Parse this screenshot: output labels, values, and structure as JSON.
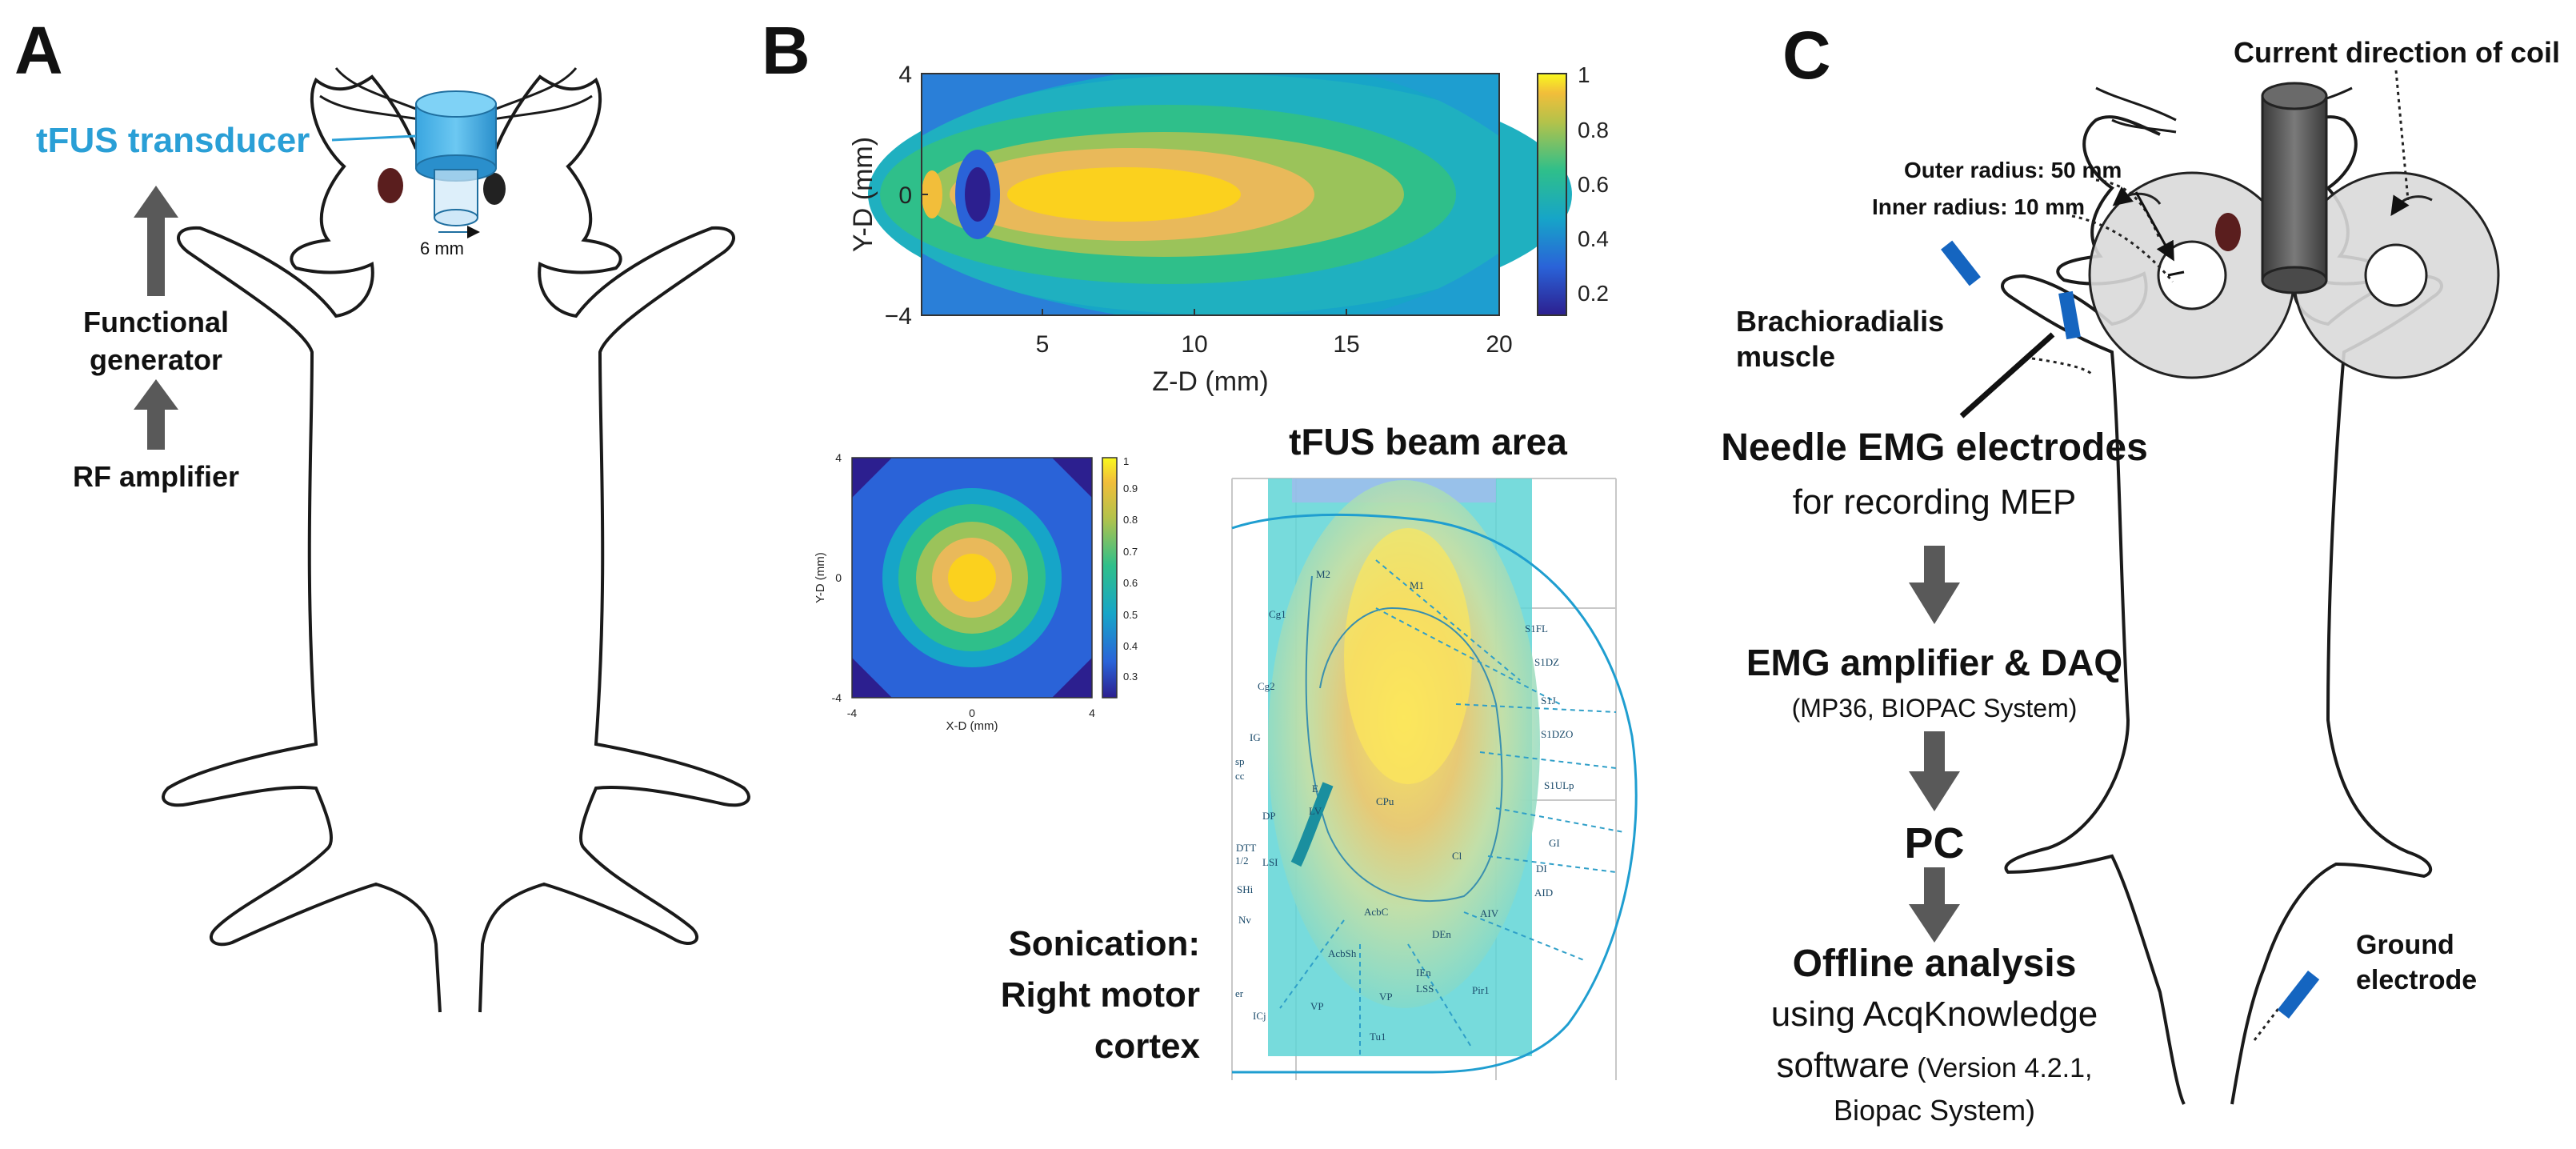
{
  "panels": {
    "a": {
      "letter": "A",
      "transducer_label": "tFUS transducer",
      "size_label": "6 mm",
      "generator_line1": "Functional",
      "generator_line2": "generator",
      "amplifier_label": "RF amplifier"
    },
    "b": {
      "letter": "B",
      "beam_title": "tFUS beam area",
      "sonication_line1": "Sonication:",
      "sonication_line2": "Right motor",
      "sonication_line3": "cortex",
      "brain_regions": [
        "M1",
        "M2",
        "Cg1",
        "Cg2",
        "S1FL",
        "S1DZ",
        "S1J",
        "S1DZO",
        "S1ULp",
        "IG",
        "CPu",
        "LV",
        "E",
        "DP",
        "DTT",
        "LSI",
        "SHi",
        "AcbC",
        "AcbSh",
        "DEn",
        "Cl",
        "AIV",
        "AID",
        "DI",
        "GI",
        "IEn",
        "LSS",
        "Pir1",
        "VP",
        "Tu1",
        "ICj",
        "VP",
        "1/2",
        "sp",
        "cc",
        "Nv",
        "er"
      ]
    },
    "c": {
      "letter": "C",
      "coil_label": "Current direction of coil",
      "outer_radius": "Outer radius: 50 mm",
      "inner_radius": "Inner radius: 10 mm",
      "muscle_line1": "Brachioradialis",
      "muscle_line2": "muscle",
      "needle_label": "Needle EMG electrodes",
      "needle_sub": "for recording MEP",
      "emg_label": "EMG amplifier & DAQ",
      "emg_sub": "(MP36, BIOPAC System)",
      "pc_label": "PC",
      "offline_label": "Offline analysis",
      "offline_line2": "using AcqKnowledge",
      "offline_line3a": "software",
      "offline_line3b": " (Version 4.2.1,",
      "offline_line4": "Biopac System)",
      "ground_line1": "Ground",
      "ground_line2": "electrode"
    }
  },
  "chart_data": [
    {
      "type": "heatmap",
      "name": "axial beam profile",
      "xlabel": "Z-D (mm)",
      "ylabel": "Y-D (mm)",
      "xlim": [
        1,
        20
      ],
      "ylim": [
        -4,
        4
      ],
      "xticks": [
        "5",
        "10",
        "15",
        "20"
      ],
      "yticks": [
        "4",
        "0",
        "−4"
      ],
      "colorbar_ticks": [
        "1",
        "0.8",
        "0.6",
        "0.4",
        "0.2"
      ],
      "colorbar_range": [
        0.1,
        1.0
      ],
      "peak_center_z": 8,
      "peak_center_y": 0
    },
    {
      "type": "heatmap",
      "name": "lateral beam profile",
      "xlabel": "X-D (mm)",
      "ylabel": "Y-D (mm)",
      "xlim": [
        -4,
        4
      ],
      "ylim": [
        -4,
        4
      ],
      "xticks": [
        "-4",
        "0",
        "4"
      ],
      "yticks": [
        "4",
        "0",
        "-4"
      ],
      "colorbar_ticks": [
        "1",
        "0.9",
        "0.8",
        "0.7",
        "0.6",
        "0.5",
        "0.4",
        "0.3"
      ],
      "colorbar_range": [
        0.25,
        1.0
      ],
      "peak_center_x": 0,
      "peak_center_y": 0
    }
  ],
  "colors": {
    "transducer_blue": "#2a9fd6",
    "arrow_gray": "#595959",
    "electrode_blue": "#1565c0",
    "coil_gray": "#d9d9d9",
    "outline": "#222222"
  }
}
